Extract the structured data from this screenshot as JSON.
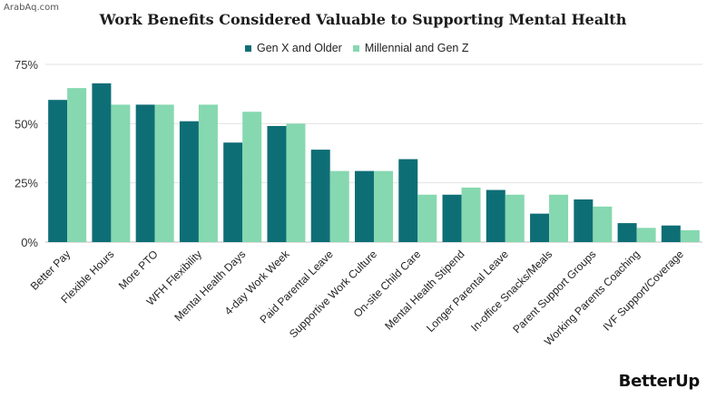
{
  "watermark": "ArabAq.com",
  "brand": "BetterUp",
  "chart_data": {
    "type": "bar",
    "title": "Work Benefits Considered Valuable to Supporting Mental Health",
    "xlabel": "",
    "ylabel": "",
    "ylim": [
      0,
      75
    ],
    "yticks": [
      0,
      25,
      50,
      75
    ],
    "ytick_labels": [
      "0%",
      "25%",
      "50%",
      "75%"
    ],
    "grid": true,
    "legend_position": "top",
    "categories": [
      "Better Pay",
      "Flexible Hours",
      "More PTO",
      "WFH Flexibility",
      "Mental Health Days",
      "4-day Work Week",
      "Paid Parental Leave",
      "Supportive Work Culture",
      "On-site Child Care",
      "Mental Health Stipend",
      "Longer Parental Leave",
      "In-office Snacks/Meals",
      "Parent Support Groups",
      "Working Parents Coaching",
      "IVF Support/Coverage"
    ],
    "series": [
      {
        "name": "Gen X and Older",
        "color": "#0e6e76",
        "values": [
          60,
          67,
          58,
          51,
          42,
          49,
          39,
          30,
          35,
          20,
          22,
          12,
          18,
          8,
          7
        ]
      },
      {
        "name": "Millennial and Gen Z",
        "color": "#86d8b0",
        "values": [
          65,
          58,
          58,
          58,
          55,
          50,
          30,
          30,
          20,
          23,
          20,
          20,
          15,
          6,
          5
        ]
      }
    ]
  }
}
